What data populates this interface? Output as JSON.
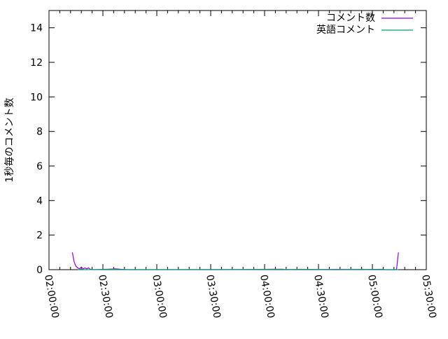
{
  "chart_data": {
    "type": "line",
    "title": "",
    "xlabel": "",
    "ylabel": "1秒毎のコメント数",
    "xlim": [
      "02:00:00",
      "05:30:00"
    ],
    "ylim": [
      0,
      15
    ],
    "xticks": [
      "02:00:00",
      "02:30:00",
      "03:00:00",
      "03:30:00",
      "04:00:00",
      "04:30:00",
      "05:00:00",
      "05:30:00"
    ],
    "yticks": [
      "0",
      "2",
      "4",
      "6",
      "8",
      "10",
      "12",
      "14"
    ],
    "grid": false,
    "legend_position": "top-right",
    "series": [
      {
        "name": "コメント数",
        "color": "#9400d3",
        "points": [
          [
            "02:13:00",
            1
          ],
          [
            "02:14:00",
            0.45
          ],
          [
            "02:15:00",
            0.2
          ],
          [
            "02:16:00",
            0.1
          ],
          [
            "02:17:00",
            0.05
          ],
          [
            "02:18:00",
            0.15
          ],
          [
            "02:19:00",
            0.05
          ],
          [
            "02:20:00",
            0.1
          ],
          [
            "02:21:00",
            0.05
          ],
          [
            "02:22:00",
            0.1
          ],
          [
            "02:23:00",
            0.02
          ],
          [
            "02:25:00",
            0
          ],
          [
            "02:33:00",
            0.03
          ],
          [
            "02:37:00",
            0.05
          ],
          [
            "02:40:00",
            0.02
          ],
          [
            "02:45:00",
            0
          ],
          [
            "03:00:00",
            0
          ],
          [
            "03:35:00",
            0
          ],
          [
            "04:10:00",
            0.03
          ],
          [
            "04:12:00",
            0
          ],
          [
            "04:20:00",
            0.02
          ],
          [
            "04:40:00",
            0
          ],
          [
            "05:06:00",
            0.02
          ],
          [
            "05:07:00",
            0
          ],
          [
            "05:13:00",
            0
          ],
          [
            "05:13:30",
            0.05
          ],
          [
            "05:14:30",
            1
          ]
        ]
      },
      {
        "name": "英語コメント",
        "color": "#009e73",
        "points": [
          [
            "02:16:00",
            0
          ],
          [
            "02:18:00",
            0.02
          ],
          [
            "02:20:00",
            0
          ],
          [
            "02:36:00",
            0.02
          ],
          [
            "02:38:00",
            0
          ],
          [
            "04:55:00",
            0.02
          ],
          [
            "04:57:00",
            0
          ],
          [
            "05:14:30",
            0
          ]
        ]
      }
    ]
  }
}
